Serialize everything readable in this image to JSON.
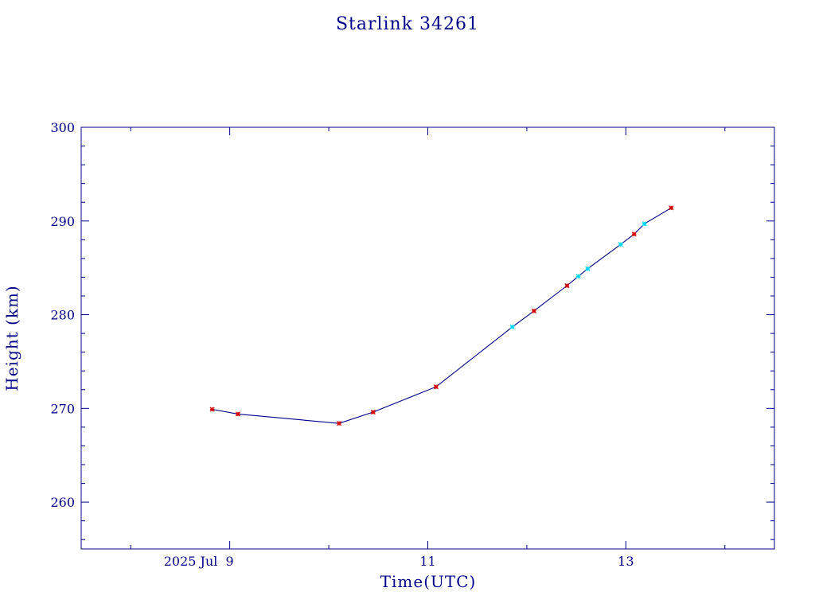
{
  "chart_data": {
    "type": "line",
    "title": "Starlink 34261",
    "xlabel": "Time(UTC)",
    "ylabel": "Height (km)",
    "x_tick_labels": [
      {
        "date": "2025-07-09",
        "label": "2025 Jul  9"
      },
      {
        "date": "2025-07-11",
        "label": "11"
      },
      {
        "date": "2025-07-13",
        "label": "13"
      }
    ],
    "y_tick_labels": [
      "260",
      "270",
      "280",
      "290",
      "300"
    ],
    "xlim": [
      "2025-07-07T12:00Z",
      "2025-07-14T12:00Z"
    ],
    "ylim": [
      255,
      300
    ],
    "grid": false,
    "legend": "none",
    "colors": {
      "axes": "#00008b",
      "line": "#00008b",
      "marker_red": "#d40000",
      "marker_cyan": "#00d8ff"
    },
    "series": [
      {
        "points": [
          {
            "t": "2025-07-08T19:45Z",
            "h": 269.9,
            "marker": "red"
          },
          {
            "t": "2025-07-09T02:00Z",
            "h": 269.4,
            "marker": "red"
          },
          {
            "t": "2025-07-10T02:30Z",
            "h": 268.4,
            "marker": "red"
          },
          {
            "t": "2025-07-10T10:45Z",
            "h": 269.6,
            "marker": "red"
          },
          {
            "t": "2025-07-11T02:00Z",
            "h": 272.3,
            "marker": "red"
          },
          {
            "t": "2025-07-11T20:30Z",
            "h": 278.7,
            "marker": "cyan"
          },
          {
            "t": "2025-07-12T01:45Z",
            "h": 280.4,
            "marker": "red"
          },
          {
            "t": "2025-07-12T09:45Z",
            "h": 283.1,
            "marker": "red"
          },
          {
            "t": "2025-07-12T12:30Z",
            "h": 284.1,
            "marker": "cyan"
          },
          {
            "t": "2025-07-12T14:45Z",
            "h": 284.9,
            "marker": "cyan"
          },
          {
            "t": "2025-07-12T22:45Z",
            "h": 287.5,
            "marker": "cyan"
          },
          {
            "t": "2025-07-13T02:00Z",
            "h": 288.6,
            "marker": "red"
          },
          {
            "t": "2025-07-13T04:30Z",
            "h": 289.7,
            "marker": "cyan"
          },
          {
            "t": "2025-07-13T11:00Z",
            "h": 291.4,
            "marker": "red"
          }
        ]
      }
    ]
  }
}
